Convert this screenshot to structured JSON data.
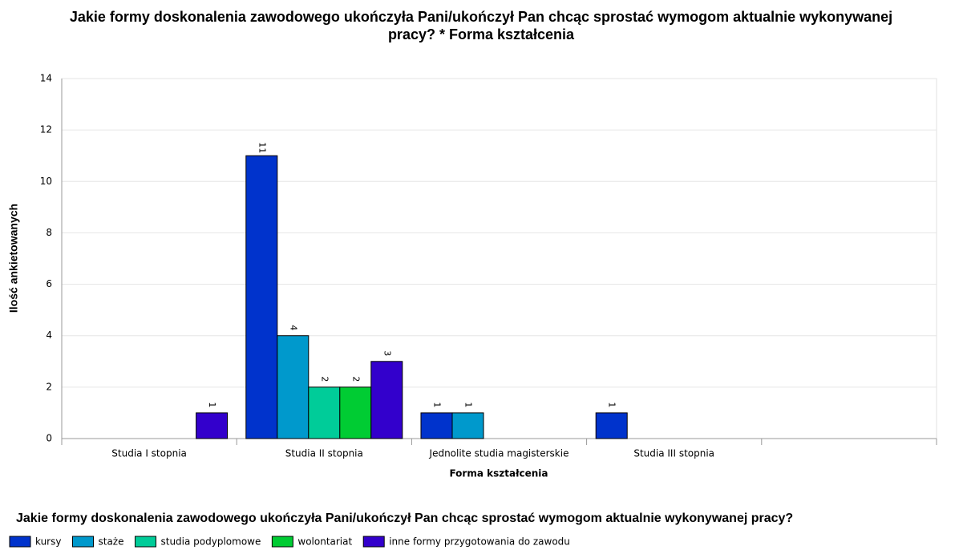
{
  "chart_data": {
    "type": "bar",
    "title": "Jakie formy doskonalenia zawodowego ukończyła Pani/ukończył Pan chcąc sprostać wymogom aktualnie wykonywanej pracy? * Forma kształcenia",
    "x_label": "Forma kształcenia",
    "y_label": "Ilość ankietowanych",
    "legend_title": "Jakie formy doskonalenia zawodowego ukończyła Pani/ukończył Pan chcąc sprostać wymogom aktualnie wykonywanej pracy?",
    "categories": [
      "Studia I stopnia",
      "Studia II stopnia",
      "Jednolite studia magisterskie",
      "Studia III stopnia",
      null
    ],
    "series": [
      {
        "name": "kursy",
        "color": "#0033cc",
        "values": [
          null,
          11,
          1,
          1,
          null
        ]
      },
      {
        "name": "staże",
        "color": "#0099cc",
        "values": [
          null,
          4,
          1,
          null,
          null
        ]
      },
      {
        "name": "studia podyplomowe",
        "color": "#00cc99",
        "values": [
          null,
          2,
          null,
          null,
          null
        ]
      },
      {
        "name": "wolontariat",
        "color": "#00cc33",
        "values": [
          null,
          2,
          null,
          null,
          null
        ]
      },
      {
        "name": "inne formy przygotowania do zawodu",
        "color": "#3300cc",
        "values": [
          1,
          3,
          null,
          null,
          null
        ]
      }
    ],
    "ylim": [
      0,
      14
    ],
    "yticks": [
      0,
      2,
      4,
      6,
      8,
      10,
      12,
      14
    ],
    "grid": true
  }
}
